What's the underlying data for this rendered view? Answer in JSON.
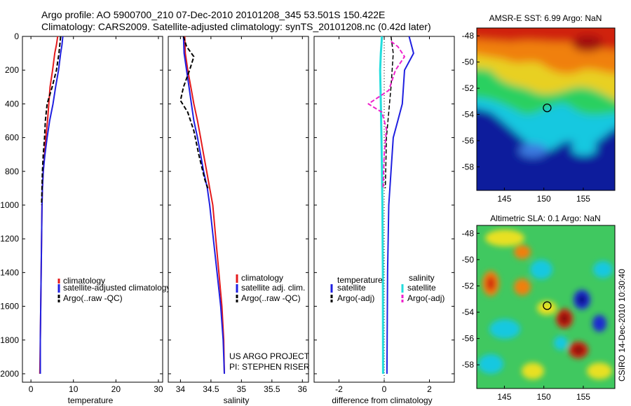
{
  "header": {
    "line1": "Argo profile: AO 5900700_210 07-Dec-2010 20101208_345 53.501S 150.422E",
    "line2": "Climatology: CARS2009. Satellite-adjusted climatology: synTS_20101208.nc (0.42d later)"
  },
  "footer": {
    "project": "US ARGO PROJECT",
    "pi": "PI: STEPHEN RISER",
    "credit": "CSIRO 14-Dec-2010 10:30:40"
  },
  "colors": {
    "climatology": "#e41a1c",
    "satellite": "#1f1fe0",
    "argo": "#000000",
    "cyan": "#22dddd",
    "magenta": "#ee22cc"
  },
  "chart_data": [
    {
      "type": "line",
      "id": "temperature",
      "xlabel": "temperature",
      "xlim": [
        -2,
        31
      ],
      "ylim": [
        2050,
        0
      ],
      "xticks": [
        0,
        10,
        20,
        30
      ],
      "yticks": [
        0,
        200,
        400,
        600,
        800,
        1000,
        1200,
        1400,
        1600,
        1800,
        2000
      ],
      "legend": [
        "climatology",
        "satellite-adjusted climatology",
        "Argo(..raw -QC)"
      ],
      "series": [
        {
          "name": "climatology",
          "color": "#e41a1c",
          "style": "solid",
          "width": 2,
          "points": [
            [
              6.3,
              0
            ],
            [
              6.0,
              50
            ],
            [
              5.6,
              100
            ],
            [
              5.1,
              200
            ],
            [
              4.5,
              300
            ],
            [
              4.2,
              400
            ],
            [
              3.9,
              500
            ],
            [
              3.5,
              600
            ],
            [
              3.2,
              700
            ],
            [
              2.9,
              800
            ],
            [
              2.7,
              900
            ],
            [
              2.6,
              1000
            ],
            [
              2.5,
              1200
            ],
            [
              2.4,
              1400
            ],
            [
              2.3,
              1600
            ],
            [
              2.2,
              1800
            ],
            [
              2.1,
              2000
            ]
          ]
        },
        {
          "name": "satellite-adjusted climatology",
          "color": "#1f1fe0",
          "style": "solid",
          "width": 2,
          "points": [
            [
              7.5,
              0
            ],
            [
              7.3,
              50
            ],
            [
              7.0,
              100
            ],
            [
              6.5,
              200
            ],
            [
              5.8,
              300
            ],
            [
              5.2,
              400
            ],
            [
              4.4,
              500
            ],
            [
              3.8,
              600
            ],
            [
              3.3,
              700
            ],
            [
              2.9,
              800
            ],
            [
              2.7,
              900
            ],
            [
              2.6,
              1000
            ],
            [
              2.5,
              1200
            ],
            [
              2.4,
              1400
            ],
            [
              2.3,
              1600
            ],
            [
              2.2,
              1800
            ],
            [
              2.2,
              2000
            ]
          ]
        },
        {
          "name": "Argo(..raw -QC)",
          "color": "#000000",
          "style": "dashed",
          "width": 2,
          "points": [
            [
              7.0,
              0
            ],
            [
              6.6,
              100
            ],
            [
              6.0,
              200
            ],
            [
              5.0,
              300
            ],
            [
              3.8,
              400
            ],
            [
              3.4,
              500
            ],
            [
              3.2,
              600
            ],
            [
              2.9,
              700
            ],
            [
              2.7,
              800
            ],
            [
              2.6,
              900
            ],
            [
              2.5,
              1000
            ]
          ]
        }
      ]
    },
    {
      "type": "line",
      "id": "salinity",
      "xlabel": "salinity",
      "xlim": [
        33.8,
        36.1
      ],
      "ylim": [
        2050,
        0
      ],
      "xticks": [
        34,
        34.5,
        35,
        35.5,
        36
      ],
      "yticks": [
        0,
        200,
        400,
        600,
        800,
        1000,
        1200,
        1400,
        1600,
        1800,
        2000
      ],
      "legend": [
        "climatology",
        "satellite adj. clim.",
        "Argo(..raw -QC)"
      ],
      "series": [
        {
          "name": "climatology",
          "color": "#e41a1c",
          "style": "solid",
          "width": 2,
          "points": [
            [
              34.07,
              0
            ],
            [
              34.08,
              100
            ],
            [
              34.12,
              200
            ],
            [
              34.17,
              300
            ],
            [
              34.22,
              400
            ],
            [
              34.28,
              500
            ],
            [
              34.33,
              600
            ],
            [
              34.38,
              700
            ],
            [
              34.43,
              800
            ],
            [
              34.48,
              900
            ],
            [
              34.53,
              1000
            ],
            [
              34.58,
              1200
            ],
            [
              34.63,
              1400
            ],
            [
              34.68,
              1600
            ],
            [
              34.71,
              1800
            ],
            [
              34.72,
              2000
            ]
          ]
        },
        {
          "name": "satellite adj. clim.",
          "color": "#1f1fe0",
          "style": "solid",
          "width": 2,
          "points": [
            [
              34.05,
              0
            ],
            [
              34.06,
              100
            ],
            [
              34.1,
              200
            ],
            [
              34.14,
              300
            ],
            [
              34.18,
              400
            ],
            [
              34.22,
              500
            ],
            [
              34.28,
              600
            ],
            [
              34.33,
              700
            ],
            [
              34.38,
              800
            ],
            [
              34.44,
              900
            ],
            [
              34.48,
              1000
            ],
            [
              34.54,
              1200
            ],
            [
              34.6,
              1400
            ],
            [
              34.66,
              1600
            ],
            [
              34.7,
              1800
            ],
            [
              34.72,
              2000
            ]
          ]
        },
        {
          "name": "Argo(..raw -QC)",
          "color": "#000000",
          "style": "dashed",
          "width": 2,
          "points": [
            [
              34.05,
              0
            ],
            [
              34.1,
              60
            ],
            [
              34.22,
              120
            ],
            [
              34.15,
              200
            ],
            [
              34.05,
              300
            ],
            [
              34.0,
              380
            ],
            [
              34.12,
              450
            ],
            [
              34.22,
              560
            ],
            [
              34.3,
              700
            ],
            [
              34.4,
              850
            ],
            [
              34.45,
              900
            ]
          ]
        }
      ]
    },
    {
      "type": "line",
      "id": "difference",
      "xlabel": "difference from climatology",
      "xlim": [
        -3.1,
        3.1
      ],
      "ylim": [
        2050,
        0
      ],
      "xticks": [
        -2,
        0,
        2
      ],
      "yticks": [
        0,
        200,
        400,
        600,
        800,
        1000,
        1200,
        1400,
        1600,
        1800,
        2000
      ],
      "legend_left_title": "temperature",
      "legend_right_title": "salinity",
      "legend": [
        "satellite",
        "Argo(-adj)",
        "satellite",
        "Argo(-adj)"
      ],
      "series": [
        {
          "name": "temperature satellite",
          "color": "#1f1fe0",
          "style": "solid",
          "width": 2,
          "points": [
            [
              1.1,
              0
            ],
            [
              1.3,
              100
            ],
            [
              0.9,
              200
            ],
            [
              0.85,
              300
            ],
            [
              0.8,
              400
            ],
            [
              0.6,
              500
            ],
            [
              0.4,
              600
            ],
            [
              0.3,
              800
            ],
            [
              0.2,
              1000
            ],
            [
              0.15,
              1400
            ],
            [
              0.12,
              2000
            ]
          ]
        },
        {
          "name": "salinity satellite",
          "color": "#22dddd",
          "style": "solid",
          "width": 3,
          "points": [
            [
              -0.1,
              0
            ],
            [
              -0.15,
              100
            ],
            [
              -0.18,
              200
            ],
            [
              -0.15,
              400
            ],
            [
              -0.12,
              600
            ],
            [
              -0.1,
              800
            ],
            [
              -0.08,
              1000
            ],
            [
              -0.06,
              1400
            ],
            [
              -0.05,
              2000
            ]
          ]
        },
        {
          "name": "temperature Argo(-adj)",
          "color": "#000000",
          "style": "dashed",
          "width": 1.5,
          "points": [
            [
              0.3,
              0
            ],
            [
              0.4,
              100
            ],
            [
              0.3,
              300
            ],
            [
              0.1,
              600
            ],
            [
              0.05,
              900
            ]
          ]
        },
        {
          "name": "salinity Argo(-adj)",
          "color": "#ee22cc",
          "style": "dashed",
          "width": 2,
          "points": [
            [
              0.3,
              30
            ],
            [
              0.6,
              60
            ],
            [
              0.9,
              120
            ],
            [
              0.5,
              200
            ],
            [
              0.2,
              320
            ],
            [
              -0.7,
              400
            ],
            [
              -0.1,
              450
            ],
            [
              0.1,
              550
            ],
            [
              0.0,
              700
            ],
            [
              -0.05,
              900
            ]
          ]
        }
      ]
    },
    {
      "type": "heatmap",
      "id": "sst_map",
      "title": "AMSR-E SST: 6.99 Argo: NaN",
      "xlim": [
        141.5,
        159
      ],
      "ylim": [
        -59.8,
        -47.4
      ],
      "xticks": [
        145,
        150,
        155
      ],
      "yticks": [
        -48,
        -50,
        -52,
        -54,
        -56,
        -58
      ],
      "float_position": [
        150.42,
        -53.5
      ]
    },
    {
      "type": "heatmap",
      "id": "sla_map",
      "title": "Altimetric SLA: 0.1 Argo: NaN",
      "xlim": [
        141.5,
        159
      ],
      "ylim": [
        -59.8,
        -47.4
      ],
      "xticks": [
        145,
        150,
        155
      ],
      "yticks": [
        -48,
        -50,
        -52,
        -54,
        -56,
        -58
      ],
      "float_position": [
        150.42,
        -53.5
      ]
    }
  ]
}
